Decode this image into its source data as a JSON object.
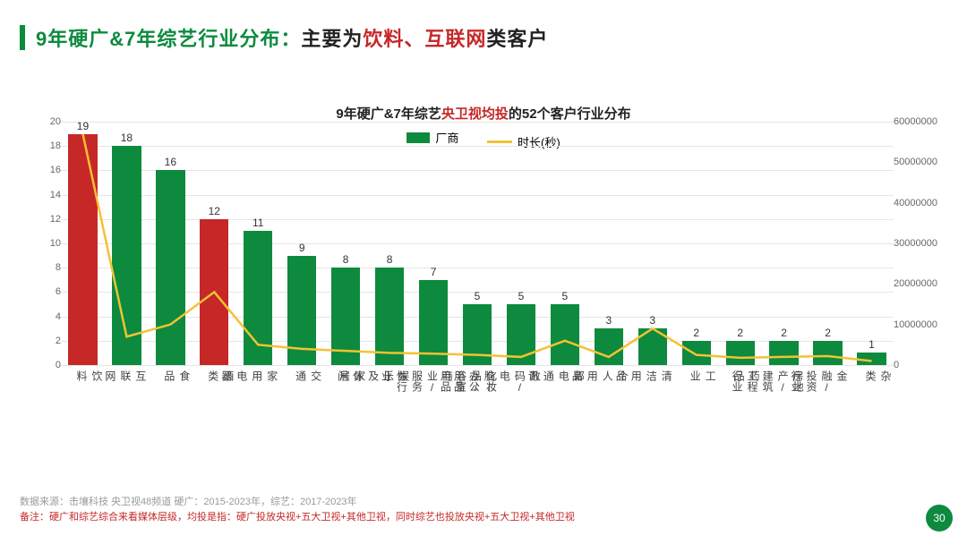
{
  "title": {
    "segments": [
      {
        "text": "9年硬广&7年综艺行业分布：",
        "color": "#0d8a3e"
      },
      {
        "text": "主要为",
        "color": "#222222"
      },
      {
        "text": "饮料、互联网",
        "color": "#c62828"
      },
      {
        "text": "类客户",
        "color": "#222222"
      }
    ],
    "accent_color": "#0d8a3e"
  },
  "chart": {
    "title_segments": [
      {
        "text": "9年硬广&7年综艺",
        "color": "#222222"
      },
      {
        "text": "央卫视均投",
        "color": "#c62828"
      },
      {
        "text": "的52个客户行业分布",
        "color": "#222222"
      }
    ],
    "legend": {
      "bar": {
        "label": "厂商",
        "color": "#0d8a3e"
      },
      "line": {
        "label": "时长(秒)",
        "color": "#f3c233"
      }
    },
    "y_left": {
      "min": 0,
      "max": 20,
      "step": 2,
      "color": "#666"
    },
    "y_right": {
      "min": 0,
      "max": 60000000,
      "step": 10000000,
      "color": "#666"
    },
    "categories": [
      "饮料",
      "互联网",
      "食品",
      "酒类",
      "家用电器",
      "交通",
      "家居",
      "娱乐及休闲",
      "商业/服务性行业",
      "化妆品/浴室用品",
      "数码/电脑/办公用品",
      "邮电通讯",
      "个人用品",
      "清洁用品",
      "工业",
      "药品",
      "房地产/建筑工程行业",
      "金融/投资行业",
      "杂类"
    ],
    "bar_values": [
      19,
      18,
      16,
      12,
      11,
      9,
      8,
      8,
      7,
      5,
      5,
      5,
      3,
      3,
      2,
      2,
      2,
      2,
      1
    ],
    "bar_colors": [
      "#c62828",
      "#0d8a3e",
      "#0d8a3e",
      "#c62828",
      "#0d8a3e",
      "#0d8a3e",
      "#0d8a3e",
      "#0d8a3e",
      "#0d8a3e",
      "#0d8a3e",
      "#0d8a3e",
      "#0d8a3e",
      "#0d8a3e",
      "#0d8a3e",
      "#0d8a3e",
      "#0d8a3e",
      "#0d8a3e",
      "#0d8a3e",
      "#0d8a3e"
    ],
    "line_values": [
      57000000,
      7000000,
      10000000,
      18000000,
      5000000,
      4000000,
      3500000,
      3000000,
      2800000,
      2500000,
      2000000,
      6000000,
      2000000,
      9000000,
      2500000,
      1800000,
      2000000,
      2200000,
      1000000
    ],
    "line_color": "#f3c233",
    "grid_color": "#e5e5e5",
    "background_color": "#ffffff"
  },
  "footer": {
    "line1": "数据来源：击壤科技 央卫视48频道 硬广：2015-2023年，综艺：2017-2023年",
    "line2": "备注：硬广和综艺综合来看媒体层级，均投是指：硬广投放央视+五大卫视+其他卫视，同时综艺也投放央视+五大卫视+其他卫视"
  },
  "page_number": "30",
  "page_badge_color": "#0d8a3e"
}
